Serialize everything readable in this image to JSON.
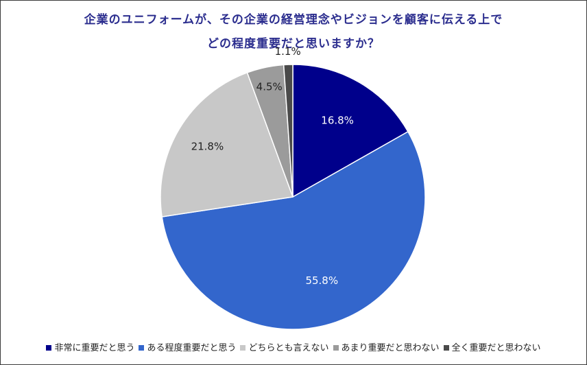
{
  "chart_data": {
    "type": "pie",
    "title_line1": "企業のユニフォームが、その企業の経営理念やビジョンを顧客に伝える上で",
    "title_line2": "どの程度重要だと思いますか？",
    "slices": [
      {
        "label": "非常に重要だと思う",
        "value": 16.8,
        "display": "16.8%",
        "color": "#00008b",
        "label_color": "#ffffff"
      },
      {
        "label": "ある程度重要だと思う",
        "value": 55.8,
        "display": "55.8%",
        "color": "#3366cc",
        "label_color": "#ffffff"
      },
      {
        "label": "どちらとも言えない",
        "value": 21.8,
        "display": "21.8%",
        "color": "#c8c8c8",
        "label_color": "#222222"
      },
      {
        "label": "あまり重要だと思わない",
        "value": 4.5,
        "display": "4.5%",
        "color": "#9b9b9b",
        "label_color": "#222222"
      },
      {
        "label": "全く重要だと思わない",
        "value": 1.1,
        "display": "1.1%",
        "color": "#4a4a4a",
        "label_color": "#222222"
      }
    ],
    "start": "12 o'clock",
    "direction": "clockwise",
    "legend_position": "bottom"
  }
}
